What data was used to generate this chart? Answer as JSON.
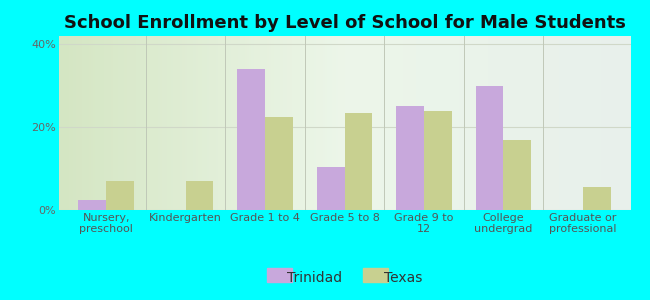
{
  "title": "School Enrollment by Level of School for Male Students",
  "categories": [
    "Nursery,\npreschool",
    "Kindergarten",
    "Grade 1 to 4",
    "Grade 5 to 8",
    "Grade 9 to\n12",
    "College\nundergrad",
    "Graduate or\nprofessional"
  ],
  "trinidad": [
    2.5,
    0.0,
    34.0,
    10.5,
    25.0,
    30.0,
    0.0
  ],
  "texas": [
    7.0,
    7.0,
    22.5,
    23.5,
    24.0,
    17.0,
    5.5
  ],
  "trinidad_color": "#c8a8dc",
  "texas_color": "#c8d090",
  "background_color": "#00ffff",
  "plot_bg": "#e8f4e0",
  "ylim": [
    0,
    42
  ],
  "yticks": [
    0,
    20,
    40
  ],
  "ytick_labels": [
    "0%",
    "20%",
    "40%"
  ],
  "legend_labels": [
    "Trinidad",
    "Texas"
  ],
  "title_fontsize": 13,
  "tick_fontsize": 8,
  "legend_fontsize": 10,
  "bar_width": 0.35,
  "grid_color": "#d0d8c8"
}
